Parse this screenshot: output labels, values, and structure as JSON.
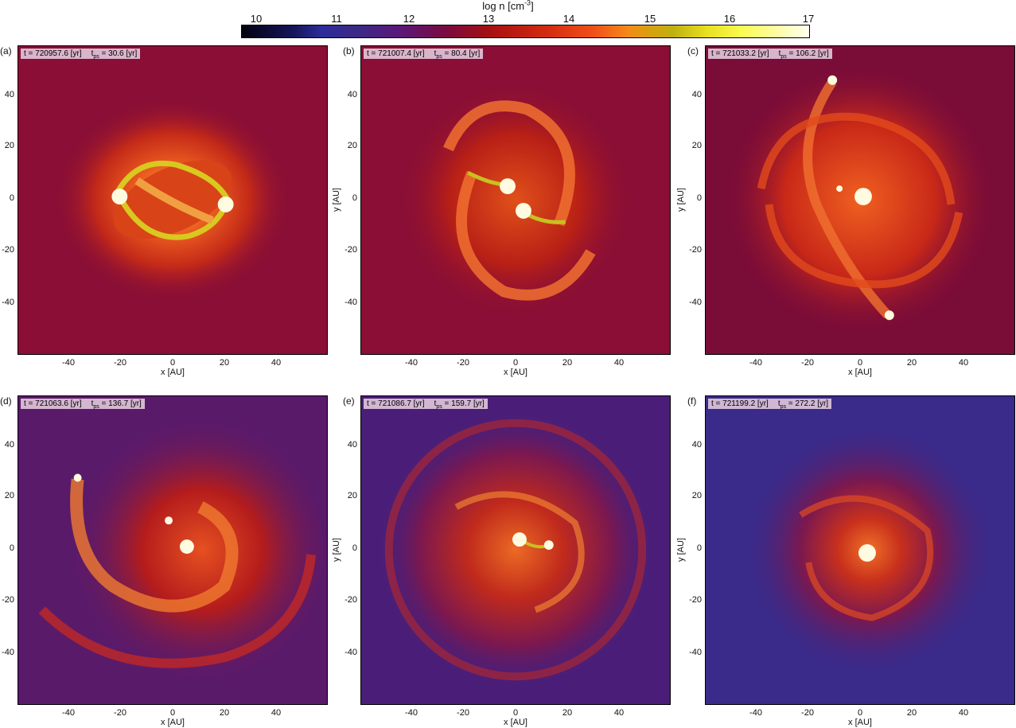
{
  "colorbar": {
    "title": "log n [cm",
    "title_exp": "-3",
    "title_end": "]",
    "ticks": [
      "10",
      "11",
      "12",
      "13",
      "14",
      "15",
      "16",
      "17"
    ]
  },
  "axes": {
    "xlabel": "x [AU]",
    "ylabel": "y [AU]",
    "yticks": [
      "40",
      "20",
      "0",
      "-20",
      "-40"
    ],
    "xticks": [
      "-40",
      "-20",
      "0",
      "20",
      "40"
    ]
  },
  "panels": [
    {
      "label": "(a)",
      "t": "t = 720957.6 [yr]",
      "tps_sym": "t",
      "tps_sub": "ps",
      "tps_val": " = 30.6 [yr]",
      "background": "#8a0e35"
    },
    {
      "label": "(b)",
      "t": "t = 721007.4 [yr]",
      "tps_sym": "t",
      "tps_sub": "ps",
      "tps_val": " = 80.4 [yr]",
      "background": "#8a0e35"
    },
    {
      "label": "(c)",
      "t": "t = 721033.2 [yr]",
      "tps_sym": "t",
      "tps_sub": "ps",
      "tps_val": " = 106.2 [yr]",
      "background": "#7a0c38"
    },
    {
      "label": "(d)",
      "t": "t = 721063.6 [yr]",
      "tps_sym": "t",
      "tps_sub": "ps",
      "tps_val": " = 136.7 [yr]",
      "background": "#5a1a6a"
    },
    {
      "label": "(e)",
      "t": "t = 721086.7 [yr]",
      "tps_sym": "t",
      "tps_sub": "ps",
      "tps_val": " = 159.7 [yr]",
      "background": "#4a1e78"
    },
    {
      "label": "(f)",
      "t": "t = 721199.2 [yr]",
      "tps_sym": "t",
      "tps_sub": "ps",
      "tps_val": " = 272.2 [yr]",
      "background": "#3a2a8a"
    }
  ]
}
